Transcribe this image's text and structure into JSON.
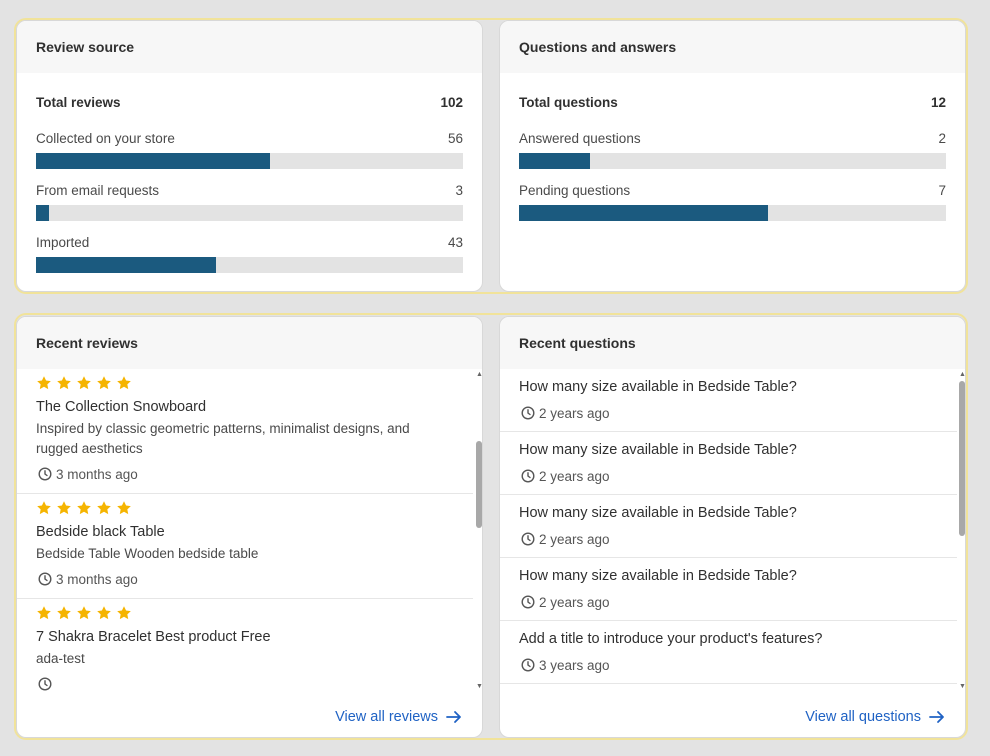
{
  "review_source": {
    "title": "Review source",
    "total_label": "Total reviews",
    "total": 102,
    "rows": [
      {
        "label": "Collected on your store",
        "value": 56
      },
      {
        "label": "From email requests",
        "value": 3
      },
      {
        "label": "Imported",
        "value": 43
      }
    ]
  },
  "questions_answers": {
    "title": "Questions and answers",
    "total_label": "Total questions",
    "total": 12,
    "rows": [
      {
        "label": "Answered questions",
        "value": 2
      },
      {
        "label": "Pending questions",
        "value": 7
      }
    ]
  },
  "recent_reviews": {
    "title": "Recent reviews",
    "link": "View all reviews",
    "items": [
      {
        "title": "The Collection Snowboard",
        "description": "Inspired by classic geometric patterns, minimalist designs, and rugged aesthetics",
        "time": "3 months ago"
      },
      {
        "title": "Bedside black Table",
        "description": "Bedside Table Wooden bedside table",
        "time": "3 months ago"
      },
      {
        "title": "7 Shakra Bracelet Best product Free",
        "description": "ada-test"
      }
    ]
  },
  "recent_questions": {
    "title": "Recent questions",
    "link": "View all questions",
    "items": [
      {
        "question": "How many size available in Bedside Table?",
        "time": "2 years ago"
      },
      {
        "question": "How many size available in Bedside Table?",
        "time": "2 years ago"
      },
      {
        "question": "How many size available in Bedside Table?",
        "time": "2 years ago"
      },
      {
        "question": "How many size available in Bedside Table?",
        "time": "2 years ago"
      },
      {
        "question": "Add a title to introduce your product's features?",
        "time": "3 years ago"
      }
    ]
  }
}
